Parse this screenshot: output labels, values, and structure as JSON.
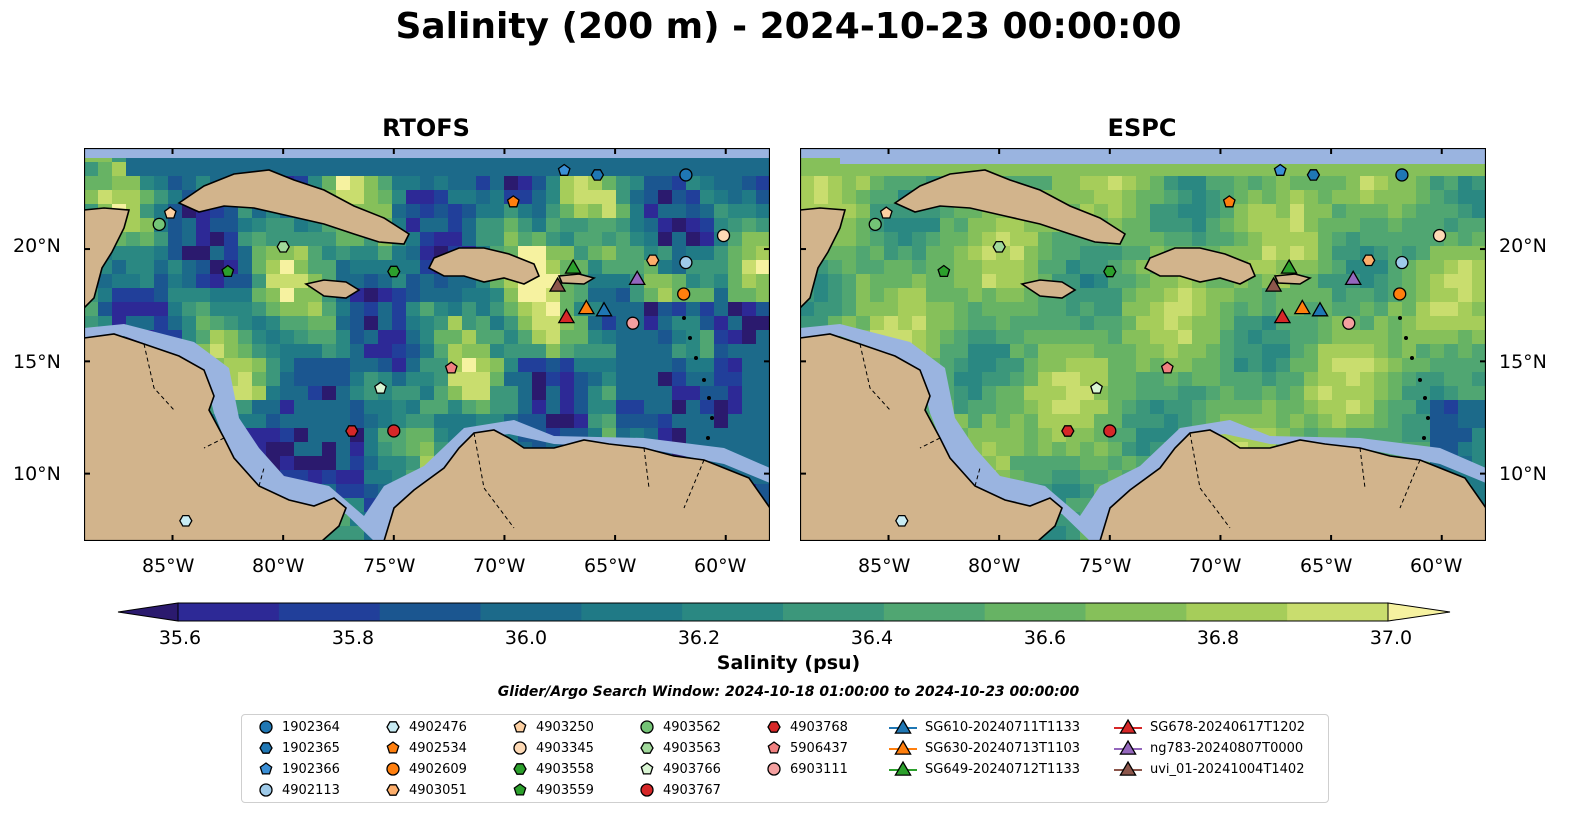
{
  "title": "Salinity (200 m) - 2024-10-23 00:00:00",
  "panels": [
    {
      "name": "RTOFS"
    },
    {
      "name": "ESPC"
    }
  ],
  "lon_ticks": [
    "85°W",
    "80°W",
    "75°W",
    "70°W",
    "65°W",
    "60°W"
  ],
  "lat_ticks": [
    "20°N",
    "15°N",
    "10°N"
  ],
  "colorbar": {
    "label": "Salinity (psu)",
    "ticks": [
      "35.6",
      "35.8",
      "36.0",
      "36.2",
      "36.4",
      "36.6",
      "36.8",
      "37.0"
    ],
    "colors": [
      "#2b1a6e",
      "#2d2996",
      "#213f9a",
      "#1b5690",
      "#1c6a8a",
      "#207a86",
      "#2a8882",
      "#3c977b",
      "#50a672",
      "#67b364",
      "#86c05a",
      "#a6cd5a",
      "#c9dd6e",
      "#f6f2a0"
    ]
  },
  "search_window": "Glider/Argo Search Window: 2024-10-18 01:00:00 to 2024-10-23 00:00:00",
  "legend": [
    {
      "label": "1902364",
      "marker": "circle",
      "color": "#1f77b4"
    },
    {
      "label": "1902365",
      "marker": "hexagon",
      "color": "#1f77b4"
    },
    {
      "label": "1902366",
      "marker": "pentagon",
      "color": "#3a8fd6"
    },
    {
      "label": "4902113",
      "marker": "circle",
      "color": "#9ecae9"
    },
    {
      "label": "4902476",
      "marker": "hexagon",
      "color": "#c8ecf4"
    },
    {
      "label": "4902534",
      "marker": "pentagon",
      "color": "#ff7f0e"
    },
    {
      "label": "4902609",
      "marker": "circle",
      "color": "#ff7f0e"
    },
    {
      "label": "4903051",
      "marker": "hexagon",
      "color": "#fdae6b"
    },
    {
      "label": "4903250",
      "marker": "pentagon",
      "color": "#fdd0a2"
    },
    {
      "label": "4903345",
      "marker": "circle",
      "color": "#fdd9b5"
    },
    {
      "label": "4903558",
      "marker": "hexagon",
      "color": "#2ca02c"
    },
    {
      "label": "4903559",
      "marker": "pentagon",
      "color": "#2ca02c"
    },
    {
      "label": "4903562",
      "marker": "circle",
      "color": "#74c476"
    },
    {
      "label": "4903563",
      "marker": "hexagon",
      "color": "#a1d99b"
    },
    {
      "label": "4903766",
      "marker": "pentagon",
      "color": "#d9f5d3"
    },
    {
      "label": "4903767",
      "marker": "circle",
      "color": "#d62728"
    },
    {
      "label": "4903768",
      "marker": "hexagon",
      "color": "#d62728"
    },
    {
      "label": "5906437",
      "marker": "pentagon",
      "color": "#f08080"
    },
    {
      "label": "6903111",
      "marker": "circle",
      "color": "#f4a0a0"
    },
    {
      "label": "SG610-20240711T1133",
      "marker": "triangle",
      "color": "#1f77b4"
    },
    {
      "label": "SG630-20240713T1103",
      "marker": "triangle",
      "color": "#ff7f0e"
    },
    {
      "label": "SG649-20240712T1133",
      "marker": "triangle",
      "color": "#2ca02c"
    },
    {
      "label": "SG678-20240617T1202",
      "marker": "triangle",
      "color": "#d62728"
    },
    {
      "label": "ng783-20240807T0000",
      "marker": "triangle",
      "color": "#9467bd"
    },
    {
      "label": "uvi_01-20241004T1402",
      "marker": "triangle",
      "color": "#8c564b"
    }
  ],
  "map_extent": {
    "lon": [
      -89,
      -58
    ],
    "lat": [
      7,
      24.5
    ]
  },
  "observations": [
    {
      "label": "1902364",
      "lon": -61.8,
      "lat": 23.3
    },
    {
      "label": "1902365",
      "lon": -65.8,
      "lat": 23.3
    },
    {
      "label": "1902366",
      "lon": -67.3,
      "lat": 23.5
    },
    {
      "label": "4902113",
      "lon": -61.8,
      "lat": 19.4
    },
    {
      "label": "4902476",
      "lon": -84.4,
      "lat": 7.9
    },
    {
      "label": "4902534",
      "lon": -69.6,
      "lat": 22.1
    },
    {
      "label": "4902609",
      "lon": -61.9,
      "lat": 18.0
    },
    {
      "label": "4903051",
      "lon": -63.3,
      "lat": 19.5
    },
    {
      "label": "4903250",
      "lon": -85.1,
      "lat": 21.6
    },
    {
      "label": "4903345",
      "lon": -60.1,
      "lat": 20.6
    },
    {
      "label": "4903558",
      "lon": -75.0,
      "lat": 19.0
    },
    {
      "label": "4903559",
      "lon": -82.5,
      "lat": 19.0
    },
    {
      "label": "4903562",
      "lon": -85.6,
      "lat": 21.1
    },
    {
      "label": "4903563",
      "lon": -80.0,
      "lat": 20.1
    },
    {
      "label": "4903766",
      "lon": -75.6,
      "lat": 13.8
    },
    {
      "label": "4903767",
      "lon": -75.0,
      "lat": 11.9
    },
    {
      "label": "4903768",
      "lon": -76.9,
      "lat": 11.9
    },
    {
      "label": "5906437",
      "lon": -72.4,
      "lat": 14.7
    },
    {
      "label": "6903111",
      "lon": -64.2,
      "lat": 16.7
    },
    {
      "label": "SG610-20240711T1133",
      "lon": -65.5,
      "lat": 17.3
    },
    {
      "label": "SG630-20240713T1103",
      "lon": -66.3,
      "lat": 17.4
    },
    {
      "label": "SG649-20240712T1133",
      "lon": -66.9,
      "lat": 19.2
    },
    {
      "label": "SG678-20240617T1202",
      "lon": -67.2,
      "lat": 17.0
    },
    {
      "label": "ng783-20240807T0000",
      "lon": -64.0,
      "lat": 18.7
    },
    {
      "label": "uvi_01-20241004T1402",
      "lon": -67.6,
      "lat": 18.4
    }
  ]
}
